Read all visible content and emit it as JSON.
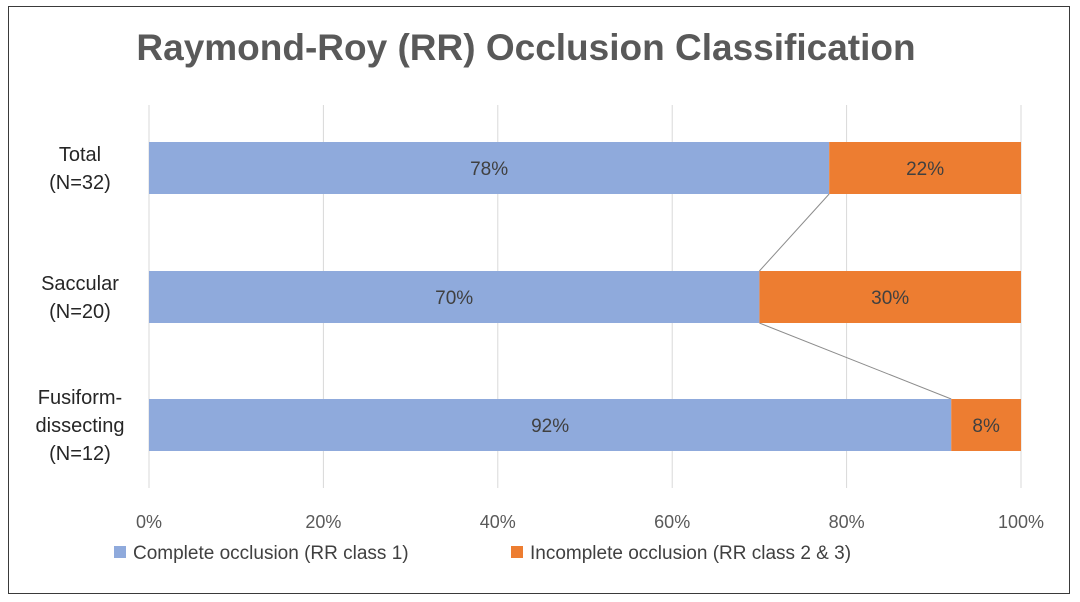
{
  "chart_data": {
    "type": "bar",
    "orientation": "horizontal",
    "stacked": "percent",
    "title": "Raymond-Roy (RR) Occlusion Classification",
    "categories": [
      [
        "Total",
        "(N=32)"
      ],
      [
        "Saccular",
        "(N=20)"
      ],
      [
        "Fusiform-",
        "dissecting",
        "(N=12)"
      ]
    ],
    "series": [
      {
        "name": "Complete occlusion (RR class 1)",
        "color": "#8faadc",
        "values": [
          78,
          70,
          92
        ],
        "labels": [
          "78%",
          "70%",
          "92%"
        ]
      },
      {
        "name": "Incomplete occlusion (RR class 2 & 3)",
        "color": "#ed7d31",
        "values": [
          22,
          30,
          8
        ],
        "labels": [
          "22%",
          "30%",
          "8%"
        ]
      }
    ],
    "x_ticks": [
      "0%",
      "20%",
      "40%",
      "60%",
      "80%",
      "100%"
    ],
    "x_tick_values": [
      0,
      20,
      40,
      60,
      80,
      100
    ],
    "xlim": [
      0,
      100
    ],
    "grid": true,
    "series_lines": true,
    "legend": "bottom"
  }
}
